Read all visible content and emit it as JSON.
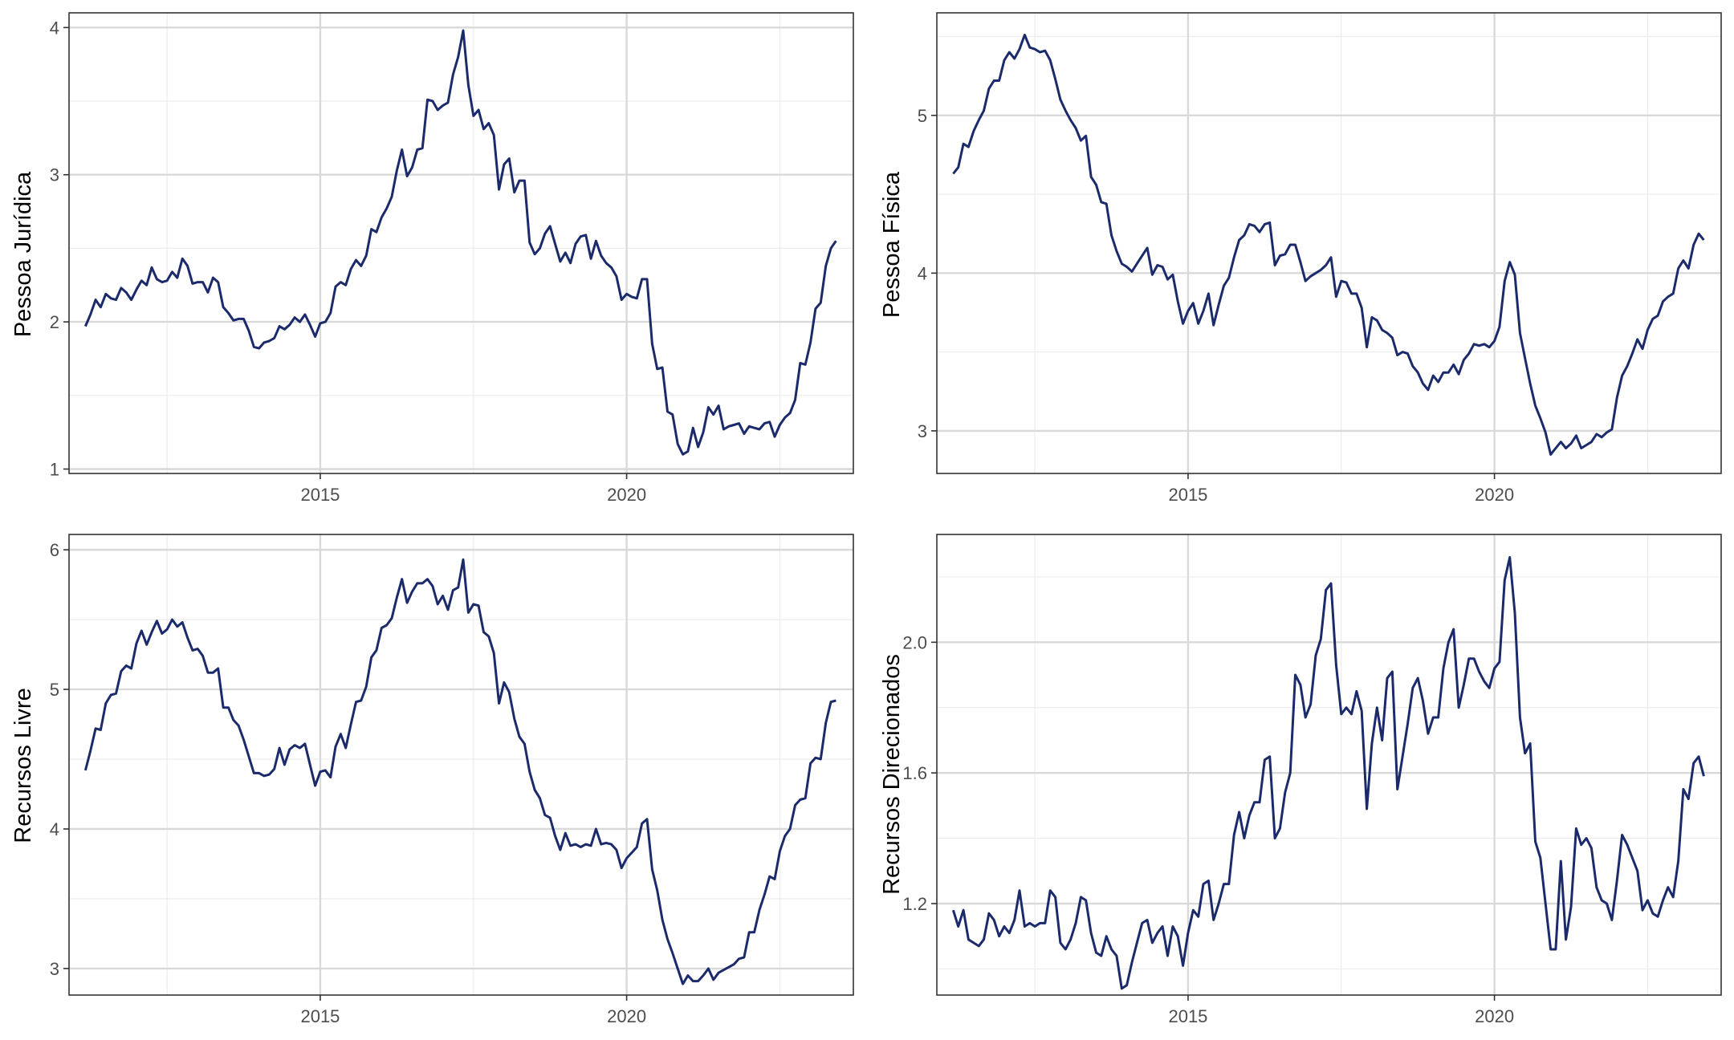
{
  "chart_data": [
    {
      "type": "line",
      "ylabel": "Pessoa Jurídica",
      "xlabel": "",
      "x_start": "2011-03",
      "x_step": "monthly",
      "xticks": [
        2015,
        2020
      ],
      "xlim": [
        2010.9,
        2023.7
      ],
      "ylim": [
        0.97,
        4.1
      ],
      "yticks": [
        1,
        2,
        3,
        4
      ],
      "ytick_labels": [
        "1",
        "2",
        "3",
        "4"
      ],
      "color": "#1b2a6b",
      "series": [
        {
          "values": [
            1.97,
            2.05,
            2.15,
            2.1,
            2.19,
            2.16,
            2.15,
            2.23,
            2.2,
            2.15,
            2.22,
            2.28,
            2.25,
            2.37,
            2.29,
            2.27,
            2.28,
            2.34,
            2.3,
            2.43,
            2.38,
            2.26,
            2.27,
            2.27,
            2.2,
            2.3,
            2.27,
            2.1,
            2.06,
            2.01,
            2.02,
            2.02,
            1.94,
            1.83,
            1.82,
            1.86,
            1.87,
            1.89,
            1.97,
            1.95,
            1.98,
            2.03,
            2.0,
            2.05,
            1.98,
            1.9,
            1.99,
            2.0,
            2.06,
            2.24,
            2.27,
            2.25,
            2.36,
            2.42,
            2.38,
            2.45,
            2.63,
            2.61,
            2.71,
            2.77,
            2.85,
            3.03,
            3.17,
            2.99,
            3.05,
            3.17,
            3.18,
            3.51,
            3.5,
            3.44,
            3.47,
            3.49,
            3.68,
            3.8,
            3.98,
            3.61,
            3.4,
            3.44,
            3.31,
            3.35,
            3.27,
            2.9,
            3.07,
            3.11,
            2.88,
            2.96,
            2.96,
            2.54,
            2.46,
            2.5,
            2.6,
            2.65,
            2.53,
            2.41,
            2.47,
            2.4,
            2.53,
            2.58,
            2.59,
            2.43,
            2.55,
            2.45,
            2.4,
            2.37,
            2.31,
            2.15,
            2.19,
            2.17,
            2.16,
            2.29,
            2.29,
            1.85,
            1.68,
            1.69,
            1.39,
            1.37,
            1.17,
            1.1,
            1.12,
            1.28,
            1.15,
            1.25,
            1.42,
            1.37,
            1.43,
            1.27,
            1.29,
            1.3,
            1.31,
            1.24,
            1.29,
            1.28,
            1.27,
            1.31,
            1.32,
            1.22,
            1.3,
            1.35,
            1.38,
            1.47,
            1.72,
            1.71,
            1.86,
            2.09,
            2.13,
            2.38,
            2.5,
            2.55
          ]
        }
      ]
    },
    {
      "type": "line",
      "ylabel": "Pessoa Física",
      "xlabel": "",
      "x_start": "2011-03",
      "x_step": "monthly",
      "xticks": [
        2015,
        2020
      ],
      "xlim": [
        2010.9,
        2023.7
      ],
      "ylim": [
        2.73,
        5.65
      ],
      "yticks": [
        3,
        4,
        5
      ],
      "ytick_labels": [
        "3",
        "4",
        "5"
      ],
      "color": "#1b2a6b",
      "series": [
        {
          "values": [
            4.63,
            4.67,
            4.82,
            4.8,
            4.9,
            4.97,
            5.03,
            5.17,
            5.22,
            5.22,
            5.35,
            5.4,
            5.36,
            5.42,
            5.51,
            5.43,
            5.42,
            5.4,
            5.41,
            5.35,
            5.23,
            5.1,
            5.03,
            4.97,
            4.92,
            4.84,
            4.87,
            4.61,
            4.56,
            4.45,
            4.44,
            4.24,
            4.14,
            4.06,
            4.04,
            4.01,
            4.06,
            4.11,
            4.16,
            3.99,
            4.05,
            4.04,
            3.96,
            3.99,
            3.82,
            3.68,
            3.76,
            3.81,
            3.68,
            3.76,
            3.87,
            3.67,
            3.8,
            3.92,
            3.97,
            4.1,
            4.21,
            4.24,
            4.31,
            4.3,
            4.26,
            4.31,
            4.32,
            4.05,
            4.11,
            4.12,
            4.18,
            4.18,
            4.07,
            3.95,
            3.98,
            4.0,
            4.02,
            4.05,
            4.1,
            3.85,
            3.95,
            3.94,
            3.87,
            3.87,
            3.78,
            3.53,
            3.72,
            3.7,
            3.64,
            3.62,
            3.59,
            3.48,
            3.5,
            3.49,
            3.41,
            3.37,
            3.3,
            3.26,
            3.35,
            3.31,
            3.37,
            3.37,
            3.42,
            3.36,
            3.45,
            3.49,
            3.55,
            3.54,
            3.55,
            3.53,
            3.57,
            3.66,
            3.95,
            4.07,
            3.99,
            3.62,
            3.46,
            3.3,
            3.16,
            3.08,
            2.99,
            2.85,
            2.89,
            2.93,
            2.89,
            2.92,
            2.97,
            2.89,
            2.91,
            2.93,
            2.98,
            2.96,
            2.99,
            3.01,
            3.21,
            3.35,
            3.41,
            3.49,
            3.58,
            3.52,
            3.64,
            3.71,
            3.73,
            3.82,
            3.85,
            3.87,
            4.03,
            4.08,
            4.03,
            4.18,
            4.25,
            4.21
          ]
        }
      ]
    },
    {
      "type": "line",
      "ylabel": "Recursos Livre",
      "xlabel": "",
      "x_start": "2011-03",
      "x_step": "monthly",
      "xticks": [
        2015,
        2020
      ],
      "xlim": [
        2010.9,
        2023.7
      ],
      "ylim": [
        2.81,
        6.11
      ],
      "yticks": [
        3,
        4,
        5,
        6
      ],
      "ytick_labels": [
        "3",
        "4",
        "5",
        "6"
      ],
      "color": "#1b2a6b",
      "series": [
        {
          "values": [
            4.42,
            4.56,
            4.72,
            4.71,
            4.9,
            4.96,
            4.97,
            5.13,
            5.17,
            5.15,
            5.33,
            5.42,
            5.32,
            5.41,
            5.49,
            5.4,
            5.43,
            5.5,
            5.45,
            5.48,
            5.37,
            5.28,
            5.29,
            5.24,
            5.12,
            5.12,
            5.15,
            4.87,
            4.87,
            4.78,
            4.74,
            4.64,
            4.52,
            4.4,
            4.4,
            4.38,
            4.39,
            4.43,
            4.58,
            4.46,
            4.57,
            4.6,
            4.58,
            4.61,
            4.46,
            4.31,
            4.41,
            4.42,
            4.37,
            4.59,
            4.68,
            4.58,
            4.75,
            4.91,
            4.92,
            5.02,
            5.23,
            5.28,
            5.44,
            5.46,
            5.51,
            5.66,
            5.79,
            5.62,
            5.7,
            5.76,
            5.76,
            5.79,
            5.74,
            5.61,
            5.67,
            5.57,
            5.71,
            5.73,
            5.93,
            5.55,
            5.61,
            5.6,
            5.41,
            5.38,
            5.26,
            4.9,
            5.05,
            4.98,
            4.79,
            4.66,
            4.61,
            4.41,
            4.28,
            4.22,
            4.1,
            4.08,
            3.95,
            3.85,
            3.97,
            3.88,
            3.89,
            3.87,
            3.89,
            3.88,
            4.0,
            3.89,
            3.9,
            3.89,
            3.85,
            3.72,
            3.79,
            3.83,
            3.87,
            4.04,
            4.07,
            3.71,
            3.56,
            3.35,
            3.21,
            3.11,
            3.0,
            2.89,
            2.95,
            2.91,
            2.91,
            2.95,
            3.0,
            2.92,
            2.97,
            2.99,
            3.01,
            3.03,
            3.07,
            3.08,
            3.26,
            3.26,
            3.42,
            3.53,
            3.66,
            3.64,
            3.84,
            3.95,
            4.0,
            4.17,
            4.21,
            4.22,
            4.47,
            4.51,
            4.5,
            4.76,
            4.91,
            4.92
          ]
        }
      ]
    },
    {
      "type": "line",
      "ylabel": "Recursos Direcionados",
      "xlabel": "",
      "x_start": "2011-03",
      "x_step": "monthly",
      "xticks": [
        2015,
        2020
      ],
      "xlim": [
        2010.9,
        2023.7
      ],
      "ylim": [
        0.92,
        2.33
      ],
      "yticks": [
        1.2,
        1.6,
        2.0
      ],
      "ytick_labels": [
        "1.2",
        "1.6",
        "2.0"
      ],
      "color": "#1b2a6b",
      "series": [
        {
          "values": [
            1.18,
            1.13,
            1.18,
            1.09,
            1.08,
            1.07,
            1.09,
            1.17,
            1.15,
            1.1,
            1.13,
            1.11,
            1.15,
            1.24,
            1.13,
            1.14,
            1.13,
            1.14,
            1.14,
            1.24,
            1.22,
            1.08,
            1.06,
            1.09,
            1.14,
            1.22,
            1.21,
            1.11,
            1.05,
            1.04,
            1.1,
            1.06,
            1.04,
            0.94,
            0.95,
            1.02,
            1.08,
            1.14,
            1.15,
            1.08,
            1.11,
            1.13,
            1.04,
            1.13,
            1.1,
            1.01,
            1.11,
            1.18,
            1.16,
            1.26,
            1.27,
            1.15,
            1.2,
            1.26,
            1.26,
            1.41,
            1.48,
            1.4,
            1.47,
            1.51,
            1.51,
            1.64,
            1.65,
            1.4,
            1.43,
            1.54,
            1.6,
            1.9,
            1.87,
            1.77,
            1.81,
            1.96,
            2.01,
            2.16,
            2.18,
            1.93,
            1.78,
            1.8,
            1.78,
            1.85,
            1.79,
            1.49,
            1.69,
            1.8,
            1.7,
            1.89,
            1.91,
            1.55,
            1.65,
            1.75,
            1.86,
            1.89,
            1.82,
            1.72,
            1.77,
            1.77,
            1.92,
            2.0,
            2.04,
            1.8,
            1.87,
            1.95,
            1.95,
            1.91,
            1.88,
            1.86,
            1.92,
            1.94,
            2.19,
            2.26,
            2.09,
            1.77,
            1.66,
            1.69,
            1.39,
            1.34,
            1.2,
            1.06,
            1.06,
            1.33,
            1.09,
            1.19,
            1.43,
            1.38,
            1.4,
            1.37,
            1.25,
            1.21,
            1.2,
            1.15,
            1.27,
            1.41,
            1.38,
            1.34,
            1.3,
            1.18,
            1.21,
            1.17,
            1.16,
            1.21,
            1.25,
            1.22,
            1.33,
            1.55,
            1.52,
            1.63,
            1.65,
            1.59
          ]
        }
      ]
    }
  ]
}
